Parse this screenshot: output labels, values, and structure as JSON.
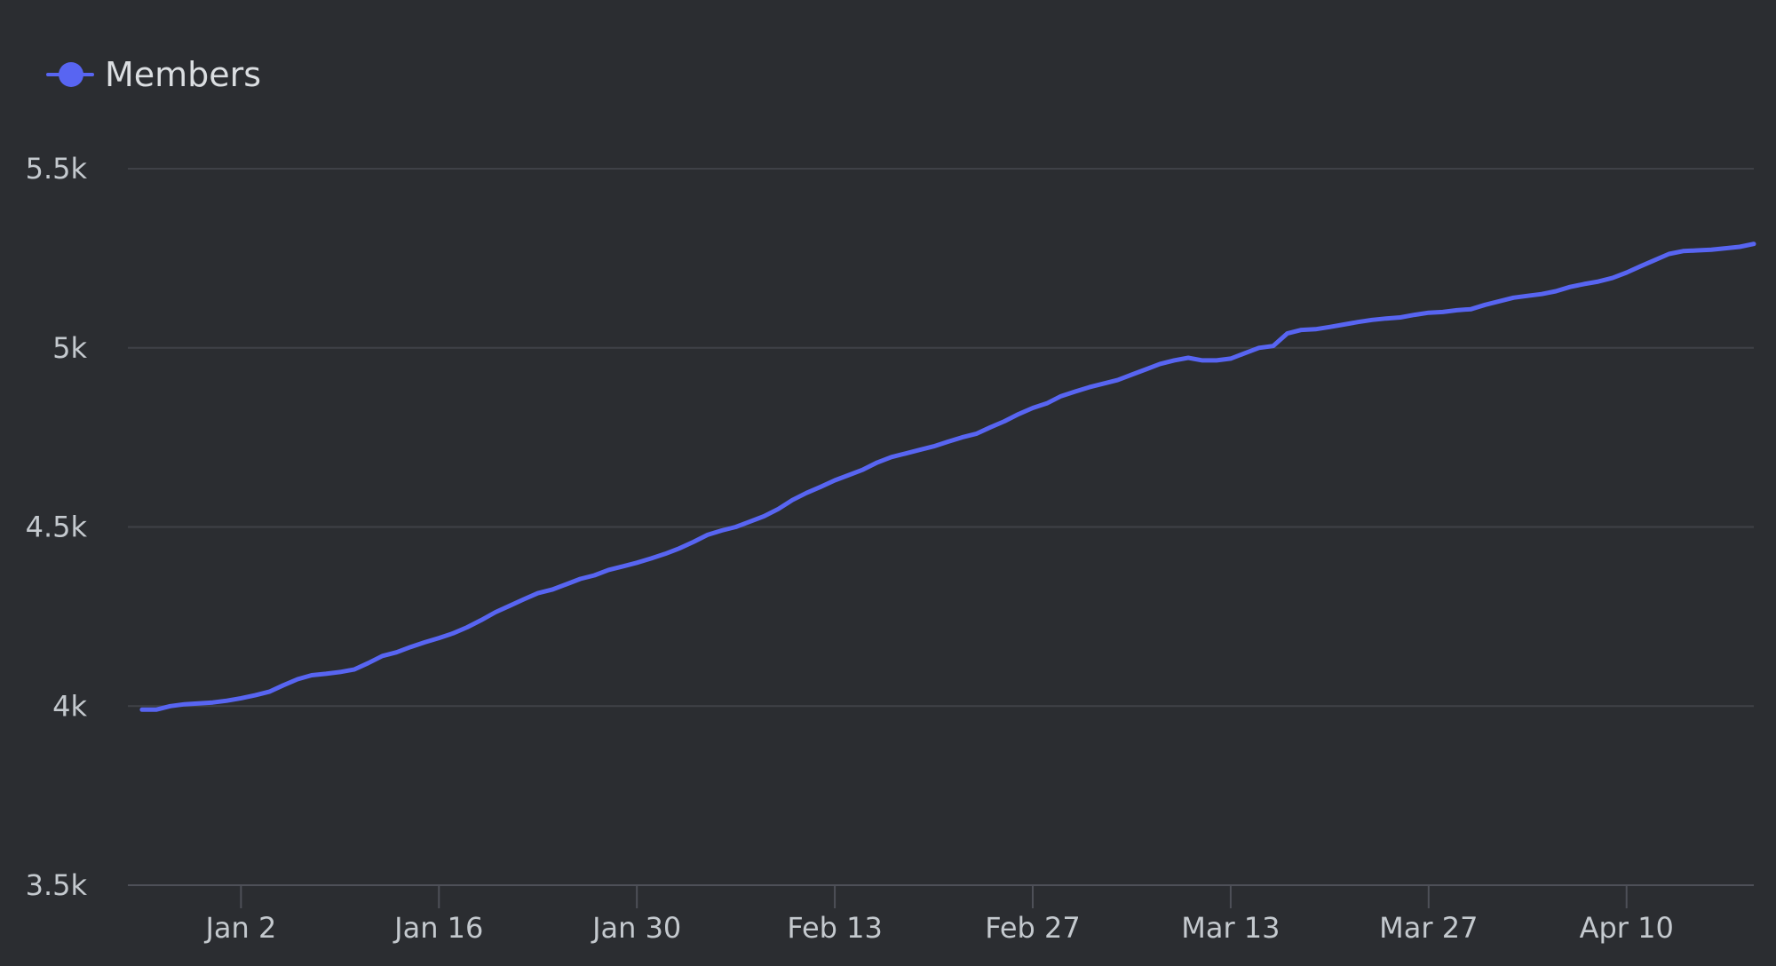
{
  "colors": {
    "background": "#2b2d31",
    "series": "#5865f2",
    "grid": "#3f4147",
    "axis": "#4e5058",
    "text": "#c4c9ce",
    "legend_text": "#dbdee1"
  },
  "legend": {
    "label": "Members",
    "placement": "top-left"
  },
  "chart_data": {
    "type": "line",
    "title": "",
    "xlabel": "",
    "ylabel": "",
    "grid": true,
    "ylim": [
      3500,
      5500
    ],
    "xlim": [
      "2022-12-25",
      "2023-04-19"
    ],
    "yticks": [
      {
        "value": 3500,
        "label": "3.5k"
      },
      {
        "value": 4000,
        "label": "4k"
      },
      {
        "value": 4500,
        "label": "4.5k"
      },
      {
        "value": 5000,
        "label": "5k"
      },
      {
        "value": 5500,
        "label": "5.5k"
      }
    ],
    "xticks": [
      {
        "value": "2023-01-02",
        "label": "Jan 2"
      },
      {
        "value": "2023-01-16",
        "label": "Jan 16"
      },
      {
        "value": "2023-01-30",
        "label": "Jan 30"
      },
      {
        "value": "2023-02-13",
        "label": "Feb 13"
      },
      {
        "value": "2023-02-27",
        "label": "Feb 27"
      },
      {
        "value": "2023-03-13",
        "label": "Mar 13"
      },
      {
        "value": "2023-03-27",
        "label": "Mar 27"
      },
      {
        "value": "2023-04-10",
        "label": "Apr 10"
      }
    ],
    "series": [
      {
        "name": "Members",
        "points": [
          [
            "2022-12-26",
            3990
          ],
          [
            "2022-12-27",
            3990
          ],
          [
            "2022-12-28",
            4000
          ],
          [
            "2022-12-29",
            4005
          ],
          [
            "2022-12-31",
            4010
          ],
          [
            "2023-01-01",
            4015
          ],
          [
            "2023-01-02",
            4022
          ],
          [
            "2023-01-03",
            4030
          ],
          [
            "2023-01-04",
            4040
          ],
          [
            "2023-01-05",
            4058
          ],
          [
            "2023-01-06",
            4075
          ],
          [
            "2023-01-07",
            4086
          ],
          [
            "2023-01-08",
            4090
          ],
          [
            "2023-01-09",
            4095
          ],
          [
            "2023-01-10",
            4102
          ],
          [
            "2023-01-11",
            4120
          ],
          [
            "2023-01-12",
            4140
          ],
          [
            "2023-01-13",
            4150
          ],
          [
            "2023-01-14",
            4165
          ],
          [
            "2023-01-15",
            4178
          ],
          [
            "2023-01-16",
            4190
          ],
          [
            "2023-01-17",
            4203
          ],
          [
            "2023-01-18",
            4220
          ],
          [
            "2023-01-19",
            4240
          ],
          [
            "2023-01-20",
            4262
          ],
          [
            "2023-01-21",
            4280
          ],
          [
            "2023-01-22",
            4298
          ],
          [
            "2023-01-23",
            4315
          ],
          [
            "2023-01-24",
            4325
          ],
          [
            "2023-01-25",
            4340
          ],
          [
            "2023-01-26",
            4355
          ],
          [
            "2023-01-27",
            4365
          ],
          [
            "2023-01-28",
            4380
          ],
          [
            "2023-01-29",
            4390
          ],
          [
            "2023-01-30",
            4400
          ],
          [
            "2023-01-31",
            4412
          ],
          [
            "2023-02-01",
            4425
          ],
          [
            "2023-02-02",
            4440
          ],
          [
            "2023-02-03",
            4458
          ],
          [
            "2023-02-04",
            4478
          ],
          [
            "2023-02-05",
            4490
          ],
          [
            "2023-02-06",
            4500
          ],
          [
            "2023-02-07",
            4515
          ],
          [
            "2023-02-08",
            4530
          ],
          [
            "2023-02-09",
            4550
          ],
          [
            "2023-02-10",
            4575
          ],
          [
            "2023-02-11",
            4595
          ],
          [
            "2023-02-12",
            4612
          ],
          [
            "2023-02-13",
            4630
          ],
          [
            "2023-02-14",
            4645
          ],
          [
            "2023-02-15",
            4660
          ],
          [
            "2023-02-16",
            4680
          ],
          [
            "2023-02-17",
            4695
          ],
          [
            "2023-02-18",
            4705
          ],
          [
            "2023-02-19",
            4715
          ],
          [
            "2023-02-20",
            4725
          ],
          [
            "2023-02-21",
            4738
          ],
          [
            "2023-02-22",
            4750
          ],
          [
            "2023-02-23",
            4760
          ],
          [
            "2023-02-24",
            4778
          ],
          [
            "2023-02-25",
            4795
          ],
          [
            "2023-02-26",
            4815
          ],
          [
            "2023-02-27",
            4832
          ],
          [
            "2023-02-28",
            4845
          ],
          [
            "2023-03-01",
            4865
          ],
          [
            "2023-03-02",
            4878
          ],
          [
            "2023-03-03",
            4890
          ],
          [
            "2023-03-04",
            4900
          ],
          [
            "2023-03-05",
            4910
          ],
          [
            "2023-03-06",
            4925
          ],
          [
            "2023-03-07",
            4940
          ],
          [
            "2023-03-08",
            4955
          ],
          [
            "2023-03-09",
            4965
          ],
          [
            "2023-03-10",
            4972
          ],
          [
            "2023-03-11",
            4965
          ],
          [
            "2023-03-12",
            4965
          ],
          [
            "2023-03-13",
            4970
          ],
          [
            "2023-03-14",
            4985
          ],
          [
            "2023-03-15",
            5000
          ],
          [
            "2023-03-16",
            5005
          ],
          [
            "2023-03-17",
            5040
          ],
          [
            "2023-03-18",
            5050
          ],
          [
            "2023-03-19",
            5052
          ],
          [
            "2023-03-20",
            5058
          ],
          [
            "2023-03-21",
            5065
          ],
          [
            "2023-03-22",
            5072
          ],
          [
            "2023-03-23",
            5078
          ],
          [
            "2023-03-24",
            5082
          ],
          [
            "2023-03-25",
            5085
          ],
          [
            "2023-03-26",
            5092
          ],
          [
            "2023-03-27",
            5098
          ],
          [
            "2023-03-28",
            5100
          ],
          [
            "2023-03-29",
            5105
          ],
          [
            "2023-03-30",
            5108
          ],
          [
            "2023-03-31",
            5120
          ],
          [
            "2023-04-01",
            5130
          ],
          [
            "2023-04-02",
            5140
          ],
          [
            "2023-04-03",
            5145
          ],
          [
            "2023-04-04",
            5150
          ],
          [
            "2023-04-05",
            5158
          ],
          [
            "2023-04-06",
            5170
          ],
          [
            "2023-04-07",
            5178
          ],
          [
            "2023-04-08",
            5185
          ],
          [
            "2023-04-09",
            5195
          ],
          [
            "2023-04-10",
            5210
          ],
          [
            "2023-04-11",
            5228
          ],
          [
            "2023-04-12",
            5245
          ],
          [
            "2023-04-13",
            5262
          ],
          [
            "2023-04-14",
            5270
          ],
          [
            "2023-04-15",
            5272
          ],
          [
            "2023-04-16",
            5274
          ],
          [
            "2023-04-17",
            5278
          ],
          [
            "2023-04-18",
            5282
          ],
          [
            "2023-04-19",
            5290
          ]
        ]
      }
    ]
  }
}
